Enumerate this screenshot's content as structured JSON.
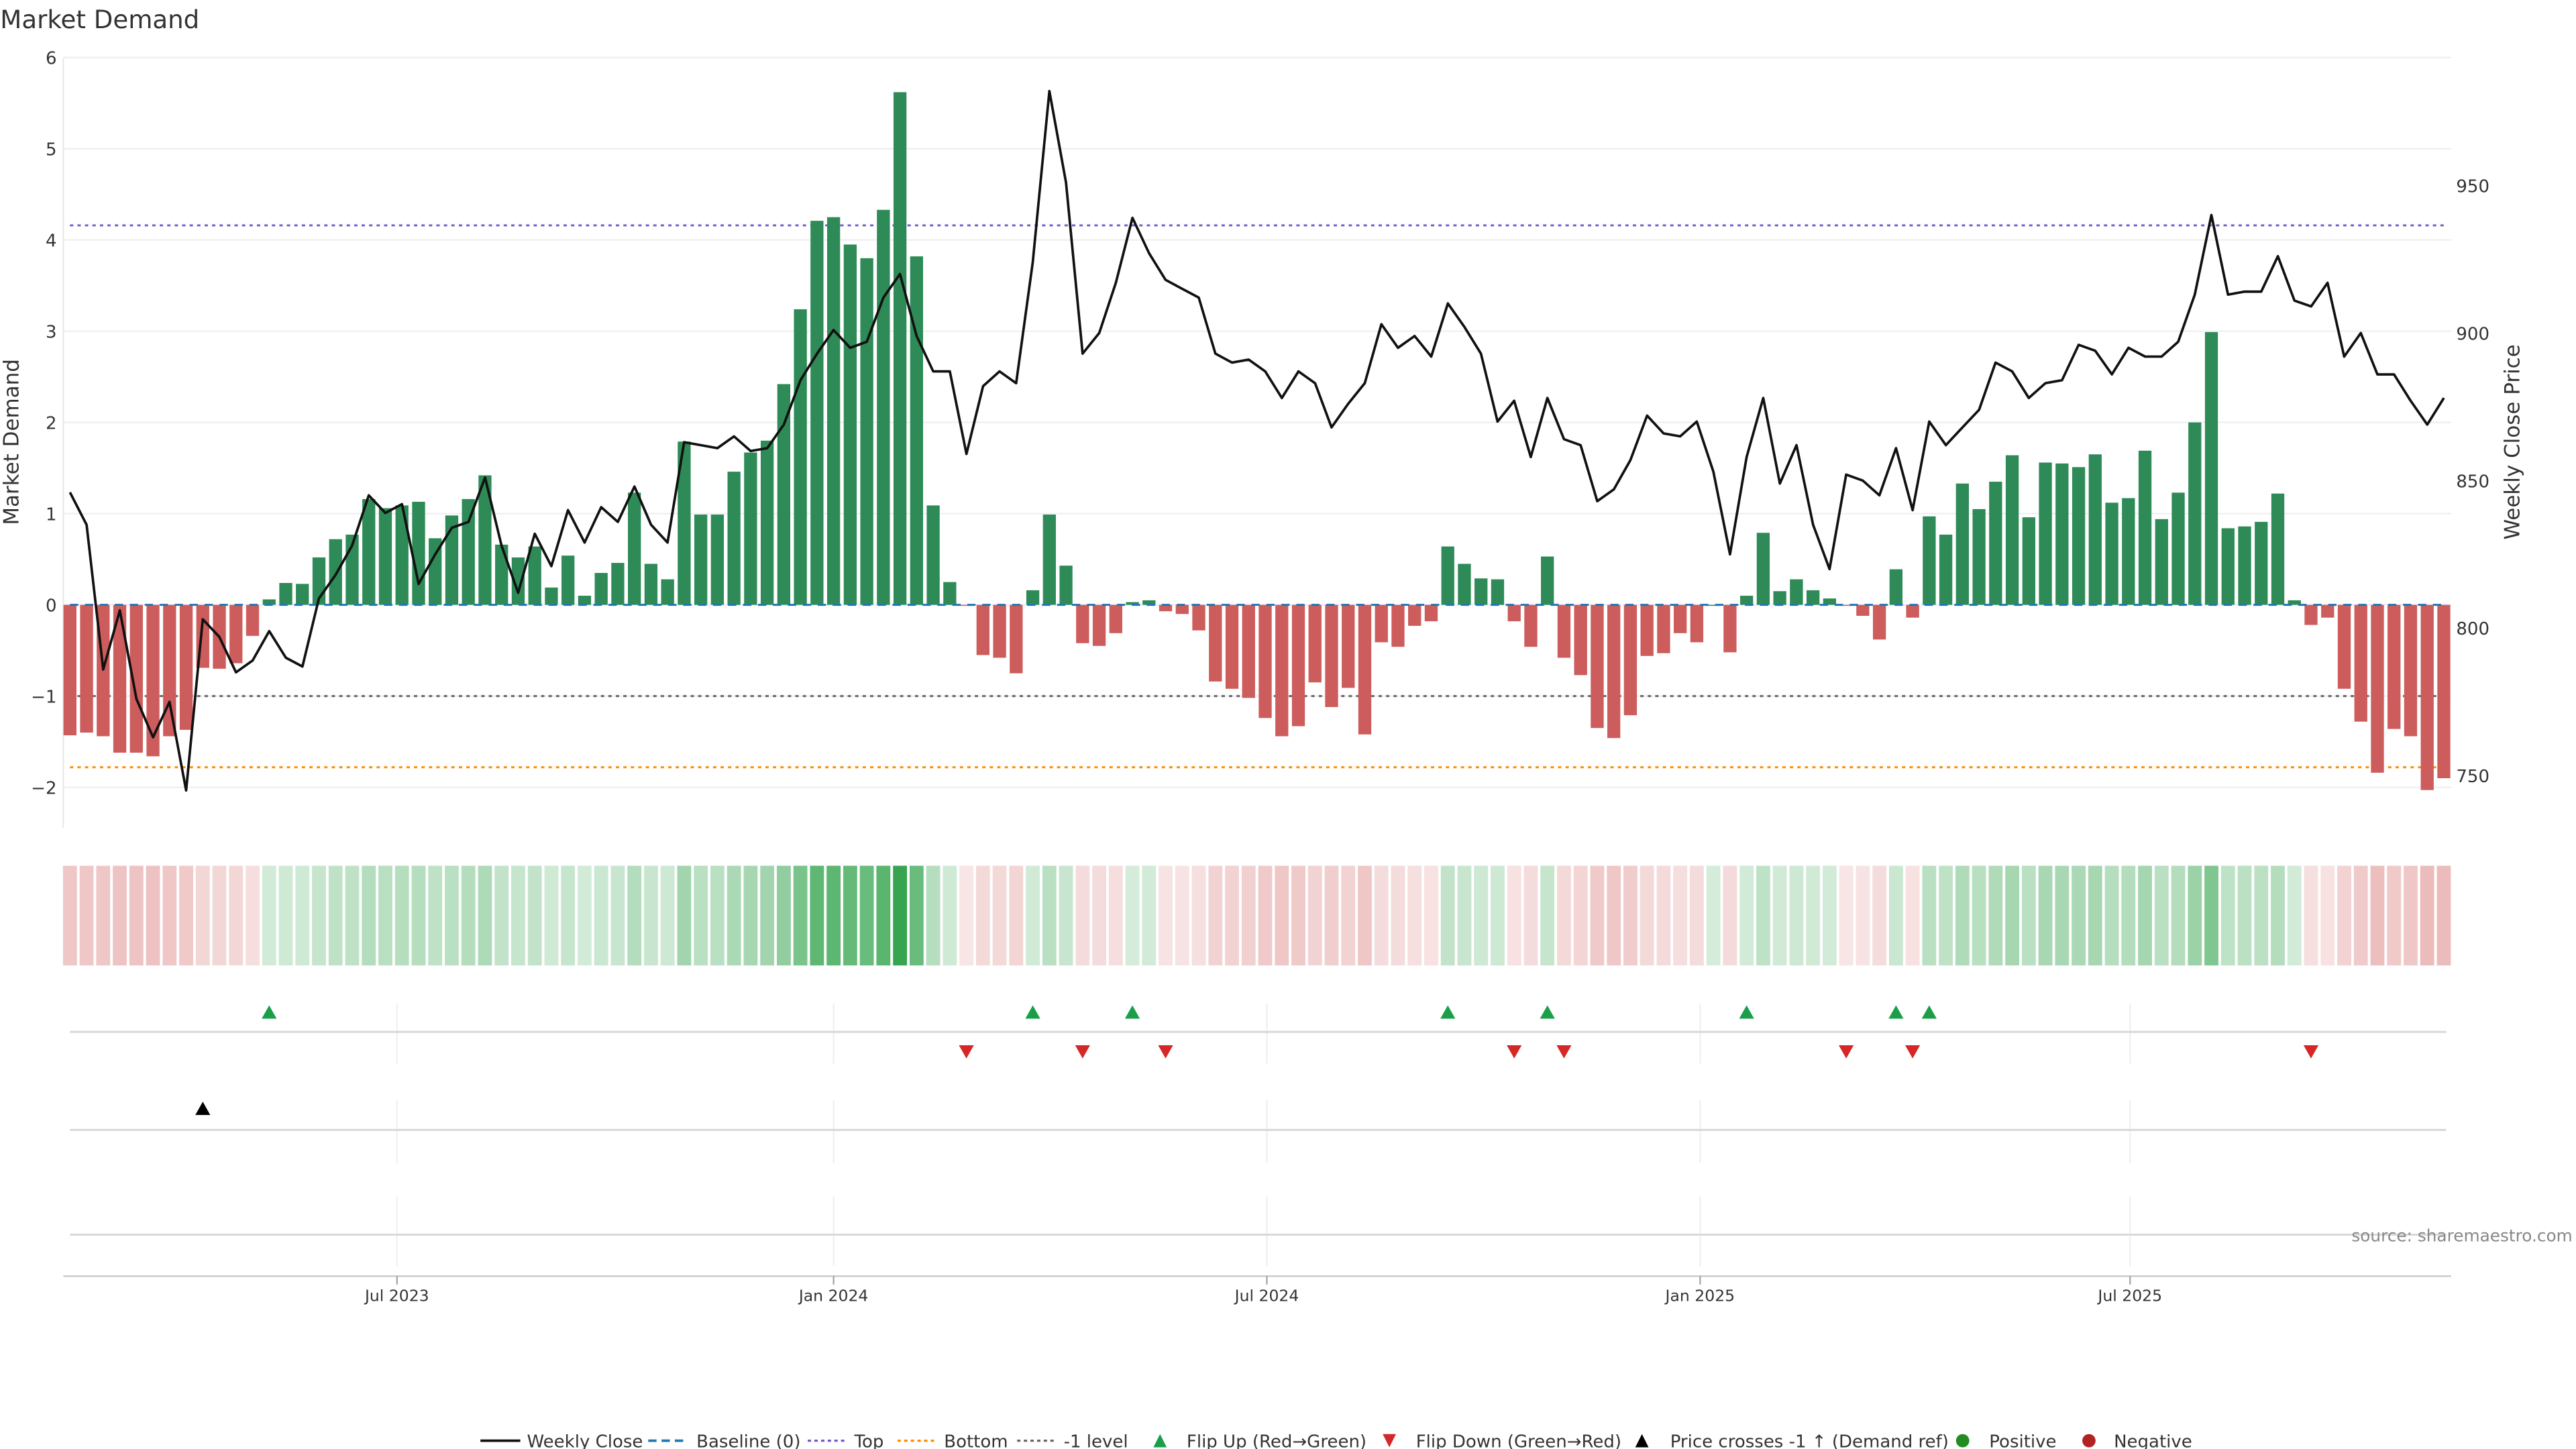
{
  "title": "Market Demand",
  "source": "source: sharemaestro.com",
  "chart_data": {
    "type": "bar",
    "title": "Market Demand",
    "ylabel": "Market Demand",
    "y2label": "Weekly Close Price",
    "ylim": [
      -2.45,
      6.0
    ],
    "y2lim": [
      741,
      986
    ],
    "yticks": [
      "6",
      "5",
      "4",
      "3",
      "2",
      "1",
      "0",
      "−2"
    ],
    "ytick_values": [
      6,
      5,
      4,
      3,
      2,
      1,
      0,
      -2
    ],
    "y1ticks_neg1_label": "−1",
    "y2ticks": [
      "950",
      "900",
      "850",
      "800",
      "750"
    ],
    "y2tick_values": [
      950,
      900,
      850,
      800,
      750
    ],
    "xticks": [
      {
        "label": "Jul 2023",
        "week": 19.7
      },
      {
        "label": "Jan 2024",
        "week": 46.0
      },
      {
        "label": "Jul 2024",
        "week": 72.1
      },
      {
        "label": "Jan 2025",
        "week": 98.2
      },
      {
        "label": "Jul 2025",
        "week": 124.1
      }
    ],
    "reference_lines": {
      "top": 4.16,
      "bottom": -1.78,
      "minus_one": -1,
      "baseline": 0
    },
    "demand": [
      -1.43,
      -1.4,
      -1.44,
      -1.62,
      -1.62,
      -1.66,
      -1.44,
      -1.37,
      -0.69,
      -0.7,
      -0.64,
      -0.34,
      0.06,
      0.24,
      0.23,
      0.52,
      0.72,
      0.77,
      1.16,
      1.06,
      1.09,
      1.13,
      0.73,
      0.98,
      1.16,
      1.42,
      0.66,
      0.52,
      0.64,
      0.19,
      0.54,
      0.1,
      0.35,
      0.46,
      1.23,
      0.45,
      0.28,
      1.79,
      0.99,
      0.99,
      1.46,
      1.67,
      1.8,
      2.42,
      3.24,
      4.21,
      4.25,
      3.95,
      3.8,
      4.33,
      5.62,
      3.82,
      1.09,
      0.25,
      -0.01,
      -0.55,
      -0.58,
      -0.75,
      0.16,
      0.99,
      0.43,
      -0.42,
      -0.45,
      -0.31,
      0.03,
      0.05,
      -0.07,
      -0.1,
      -0.28,
      -0.84,
      -0.92,
      -1.02,
      -1.24,
      -1.44,
      -1.33,
      -0.85,
      -1.12,
      -0.91,
      -1.42,
      -0.41,
      -0.46,
      -0.23,
      -0.18,
      0.64,
      0.45,
      0.29,
      0.28,
      -0.18,
      -0.46,
      0.53,
      -0.58,
      -0.77,
      -1.35,
      -1.46,
      -1.21,
      -0.56,
      -0.53,
      -0.31,
      -0.41,
      0.0,
      -0.52,
      0.1,
      0.79,
      0.15,
      0.28,
      0.16,
      0.07,
      -0.01,
      -0.12,
      -0.38,
      0.39,
      -0.14,
      0.97,
      0.77,
      1.33,
      1.05,
      1.35,
      1.64,
      0.96,
      1.56,
      1.55,
      1.51,
      1.65,
      1.12,
      1.17,
      1.69,
      0.94,
      1.23,
      2.0,
      2.99,
      0.84,
      0.86,
      0.91,
      1.22,
      0.05,
      -0.22,
      -0.14,
      -0.92,
      -1.28,
      -1.84,
      -1.36,
      -1.44,
      -2.03,
      -1.9
    ],
    "weekly_close": [
      846,
      835,
      786,
      806,
      776,
      763,
      775,
      745,
      803,
      797,
      785,
      789,
      799,
      790,
      787,
      810,
      818,
      828,
      845,
      839,
      842,
      815,
      825,
      834,
      836,
      851,
      828,
      812,
      832,
      821,
      840,
      829,
      841,
      836,
      848,
      835,
      829,
      863,
      862,
      861,
      865,
      860,
      861,
      869,
      884,
      893,
      901,
      895,
      897,
      912,
      920,
      899,
      887,
      887,
      859,
      882,
      887,
      883,
      924,
      982,
      951,
      893,
      900,
      917,
      939,
      927,
      918,
      915,
      912,
      893,
      890,
      891,
      887,
      878,
      887,
      883,
      868,
      876,
      883,
      903,
      895,
      899,
      892,
      910,
      902,
      893,
      870,
      877,
      858,
      878,
      864,
      862,
      843,
      847,
      857,
      872,
      866,
      865,
      870,
      853,
      825,
      858,
      878,
      849,
      862,
      835,
      820,
      852,
      850,
      845,
      861,
      840,
      870,
      862,
      868,
      874,
      890,
      887,
      878,
      883,
      884,
      896,
      894,
      886,
      895,
      892,
      892,
      897,
      913,
      940,
      913,
      914,
      914,
      926,
      911,
      909,
      917,
      892,
      900,
      886,
      886,
      877,
      869,
      878
    ],
    "flip_up_weeks": [
      13,
      59,
      65,
      84,
      90,
      102,
      111,
      113
    ],
    "flip_down_weeks": [
      55,
      62,
      67,
      88,
      91,
      108,
      112,
      136
    ],
    "price_cross_weeks": [
      9
    ],
    "positive_dot_weeks": [],
    "negative_dot_weeks": [],
    "colors": {
      "positive": "#2e8b57",
      "negative": "#cd5c5c",
      "price": "#111111",
      "baseline": "#1f77b4",
      "top": "#6a5acd",
      "bottom": "#ff8c00",
      "minus_one": "#666666",
      "flip_up": "#1a9e4a",
      "flip_down": "#d62728",
      "cross": "#000000",
      "pos_dot": "#228b22",
      "neg_dot": "#b22222"
    },
    "legend": {
      "placement": "bottom-center",
      "items": [
        "Weekly Close",
        "Baseline (0)",
        "Top",
        "Bottom",
        "-1 level",
        "Flip Up (Red→Green)",
        "Flip Down (Green→Red)",
        "Price crosses -1 ↑ (Demand ref)",
        "Positive",
        "Negative"
      ]
    }
  }
}
